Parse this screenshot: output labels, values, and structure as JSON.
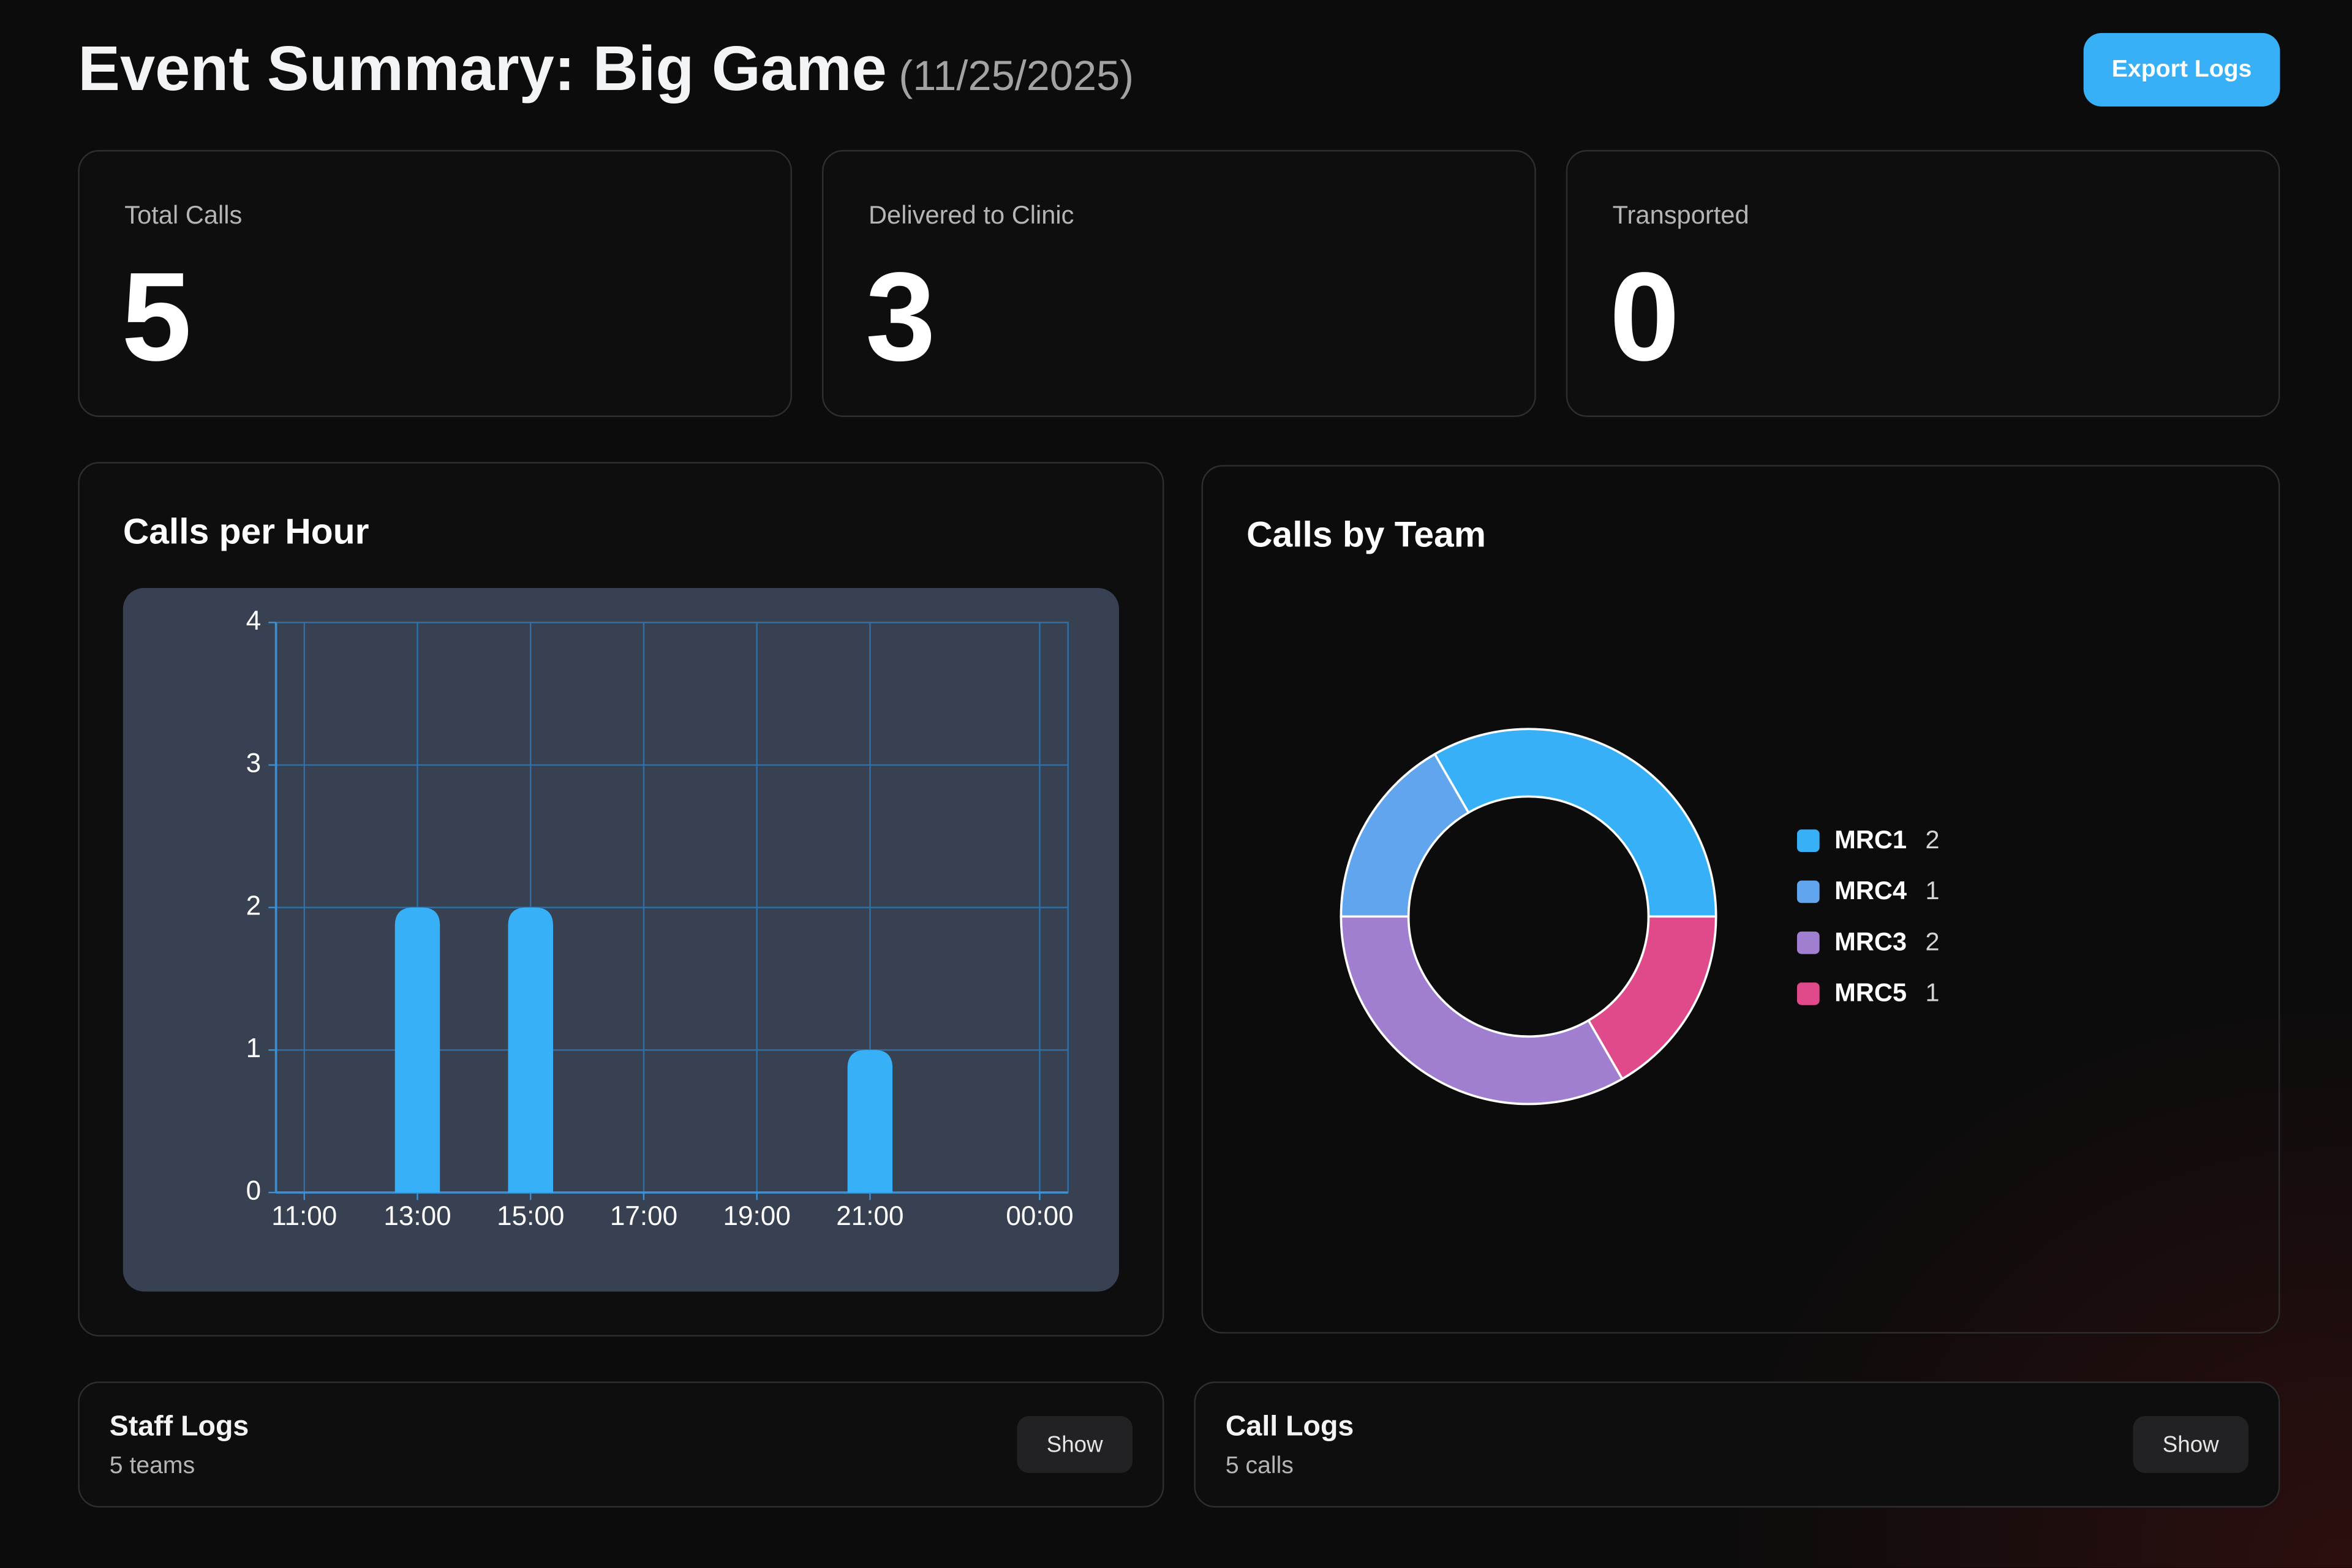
{
  "header": {
    "title": "Event Summary: Big Game",
    "date": "(11/25/2025)",
    "button": "Export Logs"
  },
  "stats": [
    {
      "label": "Total Calls",
      "value": 5
    },
    {
      "label": "Delivered to Clinic",
      "value": 3
    },
    {
      "label": "Transported",
      "value": 0
    }
  ],
  "chart_data": [
    {
      "type": "bar",
      "title": "Calls per Hour",
      "x": [
        13,
        15,
        21
      ],
      "values": [
        2,
        2,
        1
      ],
      "color": "#38b0f8",
      "xlim": [
        10.5,
        24.5
      ],
      "xticks": [
        {
          "value": 11,
          "label": "11:00"
        },
        {
          "value": 13,
          "label": "13:00"
        },
        {
          "value": 15,
          "label": "15:00"
        },
        {
          "value": 17,
          "label": "17:00"
        },
        {
          "value": 19,
          "label": "19:00"
        },
        {
          "value": 21,
          "label": "21:00"
        },
        {
          "value": 24,
          "label": "00:00"
        }
      ],
      "ylim": [
        0,
        4
      ],
      "yticks": [
        0,
        1,
        2,
        3,
        4
      ],
      "grid": true
    },
    {
      "type": "pie",
      "title": "Calls by Team",
      "categories": [
        "MRC1",
        "MRC4",
        "MRC3",
        "MRC5"
      ],
      "values": [
        2,
        1,
        2,
        1
      ],
      "colors": [
        "#38b0f8",
        "#60a5ee",
        "#a07fd0",
        "#e04a8a"
      ],
      "legend": "right"
    }
  ],
  "logs": [
    {
      "title": "Staff Logs",
      "subtitle": "5 teams",
      "button": "Show"
    },
    {
      "title": "Call Logs",
      "subtitle": "5 calls",
      "button": "Show"
    }
  ]
}
